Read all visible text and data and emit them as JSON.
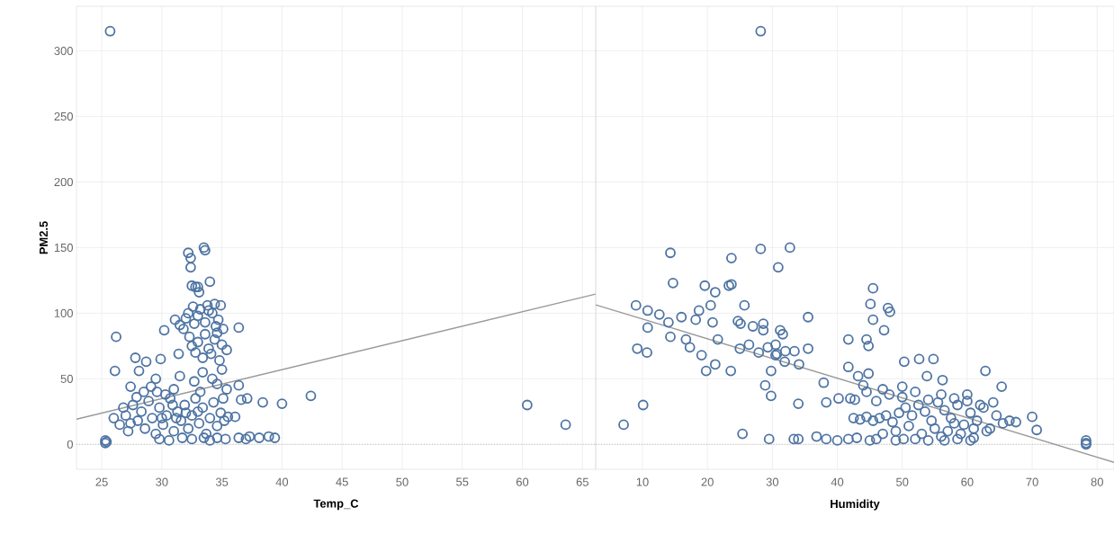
{
  "chart_data": [
    {
      "type": "scatter",
      "xlabel": "Temp_C",
      "ylabel": "PM2.5",
      "xlim": [
        22.9,
        66.1
      ],
      "ylim": [
        -19,
        334
      ],
      "xticks": [
        25,
        30,
        35,
        40,
        45,
        50,
        55,
        60,
        65
      ],
      "yticks": [
        0,
        50,
        100,
        150,
        200,
        250,
        300
      ],
      "grid": true,
      "ref_lines": [
        {
          "axis": "y",
          "value": 0,
          "color": "#bbbbbb",
          "line_style": "dotted"
        }
      ],
      "series": [
        {
          "marker": "circle",
          "color": "#4e74a3",
          "x": [
            25.7,
            26.2,
            26.1,
            25.3,
            25.3,
            25.4,
            26.0,
            63.6,
            60.4,
            42.4,
            40.0,
            38.4,
            37.1,
            36.6,
            35.1,
            36.4,
            36.1,
            33.5,
            33.6,
            32.2,
            32.4,
            32.4,
            34.0,
            32.5,
            33.0,
            33.1,
            32.8,
            32.6,
            33.2,
            33.8,
            34.4,
            34.9,
            33.0,
            34.2,
            34.7,
            32.0,
            31.1,
            30.2,
            31.5,
            32.7,
            33.6,
            34.5,
            35.1,
            33.9,
            32.2,
            31.8,
            32.3,
            33.0,
            33.6,
            34.4,
            35.0,
            35.4,
            32.8,
            33.4,
            34.1,
            34.8,
            32.5,
            31.4,
            34.6,
            33.9,
            27.8,
            28.7,
            29.9,
            28.1,
            29.5,
            30.3,
            31.5,
            32.7,
            33.4,
            34.2,
            35.0,
            34.6,
            27.4,
            29.1,
            36.4,
            31.0,
            33.2,
            35.4,
            26.5,
            27.0,
            27.2,
            27.6,
            28.0,
            28.3,
            28.6,
            28.9,
            29.2,
            29.5,
            29.8,
            30.1,
            30.4,
            30.7,
            31.0,
            31.3,
            31.6,
            31.9,
            32.2,
            32.5,
            32.8,
            33.1,
            33.4,
            33.7,
            34.0,
            34.3,
            34.6,
            34.9,
            35.2,
            35.5,
            26.8,
            27.9,
            28.5,
            29.6,
            30.9,
            33.0,
            27.4,
            31.2,
            32.0,
            30.0,
            29.8,
            30.6,
            31.7,
            32.5,
            33.5,
            34.6,
            35.3,
            36.4,
            37.3,
            38.1,
            38.9,
            39.4,
            37.0,
            34.0
          ],
          "values": [
            315,
            82,
            56,
            3,
            1,
            2,
            20,
            15,
            30,
            37,
            31,
            32,
            35,
            34,
            35,
            89,
            21,
            150,
            148,
            146,
            142,
            135,
            124,
            121,
            120,
            116,
            120,
            105,
            103,
            106,
            107,
            106,
            98,
            100,
            95,
            96,
            95,
            87,
            91,
            92,
            93,
            90,
            88,
            102,
            100,
            88,
            82,
            78,
            84,
            80,
            76,
            72,
            70,
            66,
            69,
            64,
            75,
            69,
            85,
            73,
            66,
            63,
            65,
            56,
            50,
            38,
            52,
            48,
            55,
            50,
            57,
            46,
            44,
            44,
            45,
            42,
            40,
            42,
            15,
            22,
            10,
            30,
            18,
            25,
            12,
            33,
            20,
            8,
            28,
            15,
            22,
            35,
            10,
            25,
            18,
            30,
            12,
            22,
            35,
            16,
            28,
            8,
            20,
            32,
            14,
            24,
            18,
            21,
            28,
            36,
            40,
            40,
            30,
            25,
            16,
            20,
            24,
            20,
            4,
            3,
            5,
            4,
            5,
            5,
            4,
            5,
            6,
            5,
            6,
            5,
            4,
            3
          ]
        },
        {
          "type": "line",
          "marker": "none",
          "color": "#999999",
          "x": [
            22.9,
            66.1
          ],
          "values": [
            19.2,
            114.6
          ]
        }
      ]
    },
    {
      "type": "scatter",
      "xlabel": "Humidity",
      "xlim": [
        2.8,
        82.6
      ],
      "ylim": [
        -19,
        334
      ],
      "xticks": [
        10,
        20,
        30,
        40,
        50,
        60,
        70,
        80
      ],
      "yticks": [
        0,
        50,
        100,
        150,
        200,
        250,
        300
      ],
      "grid": true,
      "tick_labels": "x",
      "ref_lines": [
        {
          "axis": "y",
          "value": 0,
          "color": "#bbbbbb",
          "line_style": "dotted"
        }
      ],
      "series": [
        {
          "marker": "circle",
          "color": "#4e74a3",
          "x": [
            28.2,
            7.1,
            10.1,
            78.3,
            78.3,
            78.3,
            14.3,
            14.7,
            9.0,
            10.8,
            10.8,
            9.2,
            10.7,
            19.6,
            21.2,
            23.3,
            23.7,
            23.7,
            28.2,
            32.7,
            30.9,
            25.7,
            20.5,
            18.7,
            16.0,
            12.6,
            14.0,
            14.3,
            18.2,
            20.8,
            16.7,
            17.3,
            19.1,
            19.8,
            21.2,
            23.6,
            21.6,
            24.7,
            25.1,
            27.0,
            28.6,
            28.6,
            31.2,
            31.6,
            26.4,
            25.0,
            27.9,
            29.3,
            30.5,
            30.7,
            32.0,
            33.4,
            35.5,
            35.5,
            34.1,
            29.8,
            28.9,
            29.8,
            34.0,
            31.9,
            30.5,
            25.4,
            29.5,
            34.0,
            33.3,
            36.8,
            38.3,
            40.0,
            41.7,
            37.9,
            38.3,
            40.2,
            41.7,
            41.7,
            42.7,
            45.5,
            45.1,
            47.8,
            48.1,
            45.5,
            47.2,
            44.5,
            44.8,
            44.8,
            50.3,
            52.6,
            54.8,
            53.8,
            62.8,
            56.2,
            65.3,
            70.0,
            70.7,
            42.5,
            43.5,
            44.5,
            45.5,
            46.5,
            47.5,
            48.5,
            49.5,
            50.5,
            51.5,
            52.5,
            53.5,
            54.5,
            55.5,
            56.5,
            57.5,
            58.5,
            59.5,
            60.5,
            61.5,
            62.5,
            63.5,
            64.5,
            65.5,
            66.5,
            67.5,
            46,
            48,
            50,
            52,
            54,
            56,
            58,
            60,
            62,
            57,
            55,
            53,
            51,
            49,
            47,
            59,
            61,
            63,
            44,
            47,
            50,
            42,
            43.2,
            44.5,
            60,
            64,
            61,
            58,
            56,
            52,
            49,
            46,
            43,
            45,
            54,
            56.5,
            58.5,
            60.5,
            50.2
          ],
          "values": [
            315,
            15,
            30,
            1,
            3,
            0,
            146,
            123,
            106,
            102,
            89,
            73,
            70,
            121,
            116,
            121,
            122,
            142,
            149,
            150,
            135,
            106,
            106,
            102,
            97,
            99,
            93,
            82,
            95,
            93,
            80,
            74,
            68,
            56,
            61,
            56,
            80,
            94,
            92,
            90,
            92,
            87,
            87,
            84,
            76,
            73,
            70,
            74,
            76,
            69,
            71,
            71,
            97,
            73,
            61,
            56,
            45,
            37,
            31,
            63,
            68,
            8,
            4,
            4,
            4,
            6,
            4,
            3,
            4,
            47,
            32,
            35,
            80,
            59,
            34,
            119,
            107,
            104,
            101,
            95,
            87,
            80,
            75,
            54,
            63,
            65,
            65,
            52,
            56,
            49,
            44,
            21,
            11,
            20,
            19,
            21,
            18,
            20,
            22,
            17,
            24,
            28,
            22,
            30,
            25,
            18,
            32,
            26,
            20,
            30,
            15,
            24,
            18,
            28,
            12,
            22,
            16,
            18,
            17,
            33,
            38,
            36,
            40,
            34,
            38,
            35,
            33,
            30,
            10,
            12,
            8,
            14,
            10,
            8,
            8,
            5,
            10,
            45,
            42,
            44,
            35,
            52,
            40,
            38,
            32,
            12,
            16,
            6,
            4,
            3,
            4,
            5,
            3,
            3,
            3,
            4,
            3,
            4
          ]
        },
        {
          "type": "line",
          "marker": "none",
          "color": "#999999",
          "x": [
            2.8,
            82.6
          ],
          "values": [
            106.4,
            -13.7
          ]
        }
      ]
    }
  ]
}
